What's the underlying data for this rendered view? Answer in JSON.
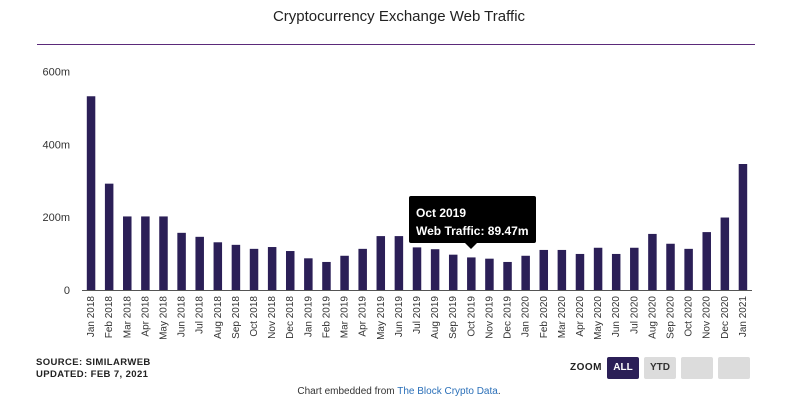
{
  "header": {
    "title": "Cryptocurrency Exchange Web Traffic"
  },
  "chart_data": {
    "type": "bar",
    "title": "Cryptocurrency Exchange Web Traffic",
    "xlabel": "",
    "ylabel": "",
    "ylim": [
      0,
      600
    ],
    "yticks": [
      {
        "value": 0,
        "label": "0"
      },
      {
        "value": 200,
        "label": "200m"
      },
      {
        "value": 400,
        "label": "400m"
      },
      {
        "value": 600,
        "label": "600m"
      }
    ],
    "grid": false,
    "bar_color": "#2b1f57",
    "categories": [
      "Jan 2018",
      "Feb 2018",
      "Mar 2018",
      "Apr 2018",
      "May 2018",
      "Jun 2018",
      "Jul 2018",
      "Aug 2018",
      "Sep 2018",
      "Oct 2018",
      "Nov 2018",
      "Dec 2018",
      "Jan 2019",
      "Feb 2019",
      "Mar 2019",
      "Apr 2019",
      "May 2019",
      "Jun 2019",
      "Jul 2019",
      "Aug 2019",
      "Sep 2019",
      "Oct 2019",
      "Nov 2019",
      "Dec 2019",
      "Jan 2020",
      "Feb 2020",
      "Mar 2020",
      "Apr 2020",
      "May 2020",
      "Jun 2020",
      "Jul 2020",
      "Aug 2020",
      "Sep 2020",
      "Oct 2020",
      "Nov 2020",
      "Dec 2020",
      "Jan 2021"
    ],
    "values": [
      532,
      292,
      202,
      202,
      202,
      157,
      146,
      131,
      124,
      113,
      118,
      107,
      87,
      77,
      94,
      113,
      148,
      148,
      117,
      112,
      97,
      89.47,
      86,
      77,
      94,
      110,
      110,
      99,
      116,
      99,
      116,
      154,
      127,
      113,
      159,
      199,
      346
    ],
    "unit": "m"
  },
  "tooltip": {
    "category_index": 21,
    "title": "Oct 2019",
    "text": "Web Traffic: 89.47m"
  },
  "source": {
    "line1": "SOURCE: SIMILARWEB",
    "line2": "UPDATED: FEB 7, 2021"
  },
  "zoom": {
    "label": "ZOOM",
    "buttons": [
      {
        "label": "ALL",
        "active": true
      },
      {
        "label": "YTD",
        "active": false
      },
      {
        "label": "",
        "active": false
      },
      {
        "label": "",
        "active": false
      }
    ]
  },
  "embed": {
    "prefix": "Chart embedded from ",
    "link_text": "The Block Crypto Data",
    "suffix": "."
  }
}
